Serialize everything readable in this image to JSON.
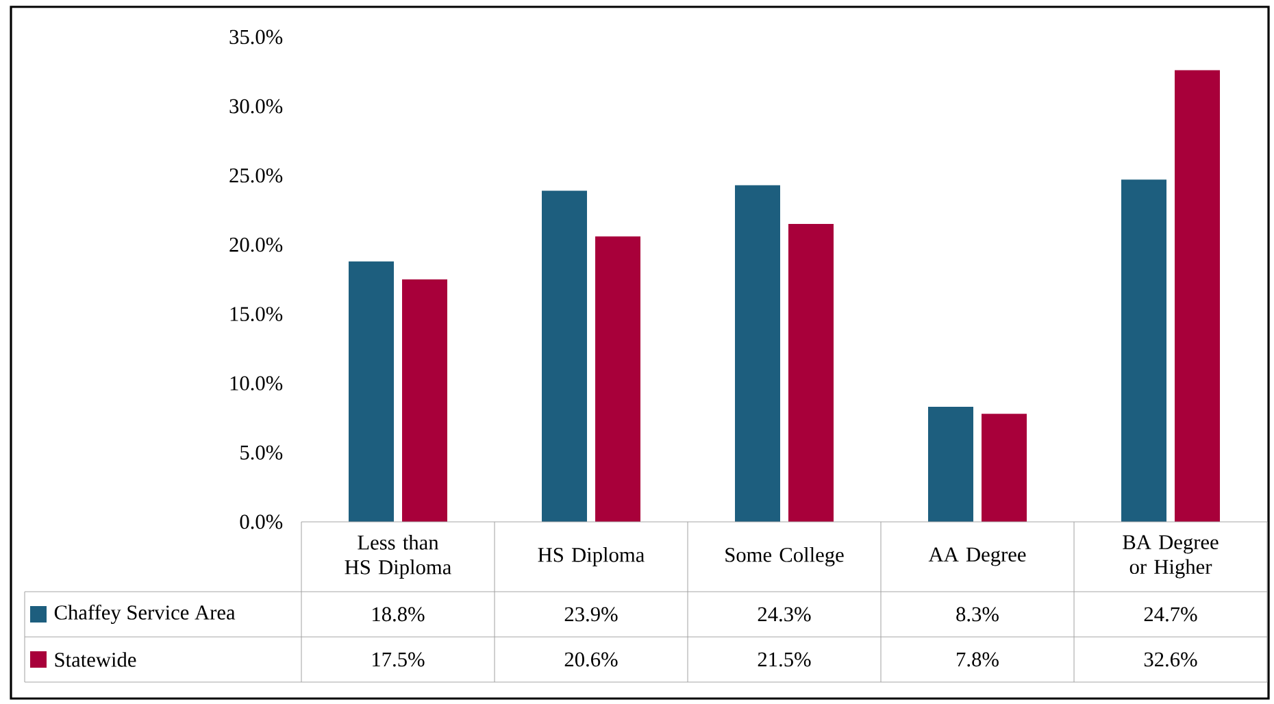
{
  "chart_data": {
    "type": "bar",
    "categories": [
      "Less than HS Diploma",
      "HS Diploma",
      "Some College",
      "AA Degree",
      "BA Degree or Higher"
    ],
    "series": [
      {
        "name": "Chaffey Service Area",
        "color": "#1d5e7e",
        "values": [
          18.8,
          23.9,
          24.3,
          8.3,
          24.7
        ],
        "value_labels": [
          "18.8%",
          "23.9%",
          "24.3%",
          "8.3%",
          "24.7%"
        ]
      },
      {
        "name": "Statewide",
        "color": "#a8003a",
        "values": [
          17.5,
          20.6,
          21.5,
          7.8,
          32.6
        ],
        "value_labels": [
          "17.5%",
          "20.6%",
          "21.5%",
          "7.8%",
          "32.6%"
        ]
      }
    ],
    "ylim": [
      0,
      35
    ],
    "yticks": [
      {
        "value": 0,
        "label": "0.0%"
      },
      {
        "value": 5,
        "label": "5.0%"
      },
      {
        "value": 10,
        "label": "10.0%"
      },
      {
        "value": 15,
        "label": "15.0%"
      },
      {
        "value": 20,
        "label": "20.0%"
      },
      {
        "value": 25,
        "label": "25.0%"
      },
      {
        "value": 30,
        "label": "30.0%"
      },
      {
        "value": 35,
        "label": "35.0%"
      }
    ],
    "grid": false,
    "legend": "bottom"
  }
}
